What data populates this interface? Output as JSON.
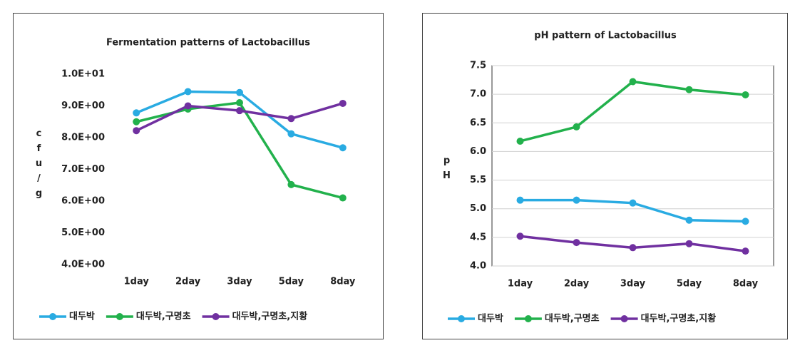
{
  "chart_data": [
    {
      "type": "line",
      "title": "Fermentation patterns of Lactobacillus",
      "y_label": "cfu/g",
      "categories": [
        "1day",
        "2day",
        "3day",
        "5day",
        "8day"
      ],
      "series": [
        {
          "name": "대두박",
          "color": "#29abe2",
          "values": [
            8.78,
            9.45,
            9.42,
            8.12,
            7.68
          ]
        },
        {
          "name": "대두박,구명초",
          "color": "#22b14c",
          "values": [
            8.5,
            8.9,
            9.1,
            6.52,
            6.1
          ]
        },
        {
          "name": "대두박,구명초,지황",
          "color": "#7030a0",
          "values": [
            8.22,
            9.0,
            8.85,
            8.6,
            9.08
          ]
        }
      ],
      "ylim": [
        4,
        10
      ],
      "yticks": [
        {
          "value": 4,
          "label": "4.0E+00"
        },
        {
          "value": 5,
          "label": "5.0E+00"
        },
        {
          "value": 6,
          "label": "6.0E+00"
        },
        {
          "value": 7,
          "label": "7.0E+00"
        },
        {
          "value": 8,
          "label": "8.0E+00"
        },
        {
          "value": 9,
          "label": "9.0E+00"
        },
        {
          "value": 10,
          "label": "1.0E+01"
        }
      ],
      "grid": false,
      "legend": "bottom"
    },
    {
      "type": "line",
      "title": "pH pattern of Lactobacillus",
      "y_label": "pH",
      "categories": [
        "1day",
        "2day",
        "3day",
        "5day",
        "8day"
      ],
      "series": [
        {
          "name": "대두박",
          "color": "#29abe2",
          "values": [
            5.15,
            5.15,
            5.1,
            4.8,
            4.78
          ]
        },
        {
          "name": "대두박,구명초",
          "color": "#22b14c",
          "values": [
            6.18,
            6.43,
            7.22,
            7.08,
            6.99
          ]
        },
        {
          "name": "대두박,구명초,지황",
          "color": "#7030a0",
          "values": [
            4.52,
            4.41,
            4.32,
            4.39,
            4.26
          ]
        }
      ],
      "ylim": [
        4,
        7.5
      ],
      "yticks": [
        {
          "value": 4,
          "label": "4.0"
        },
        4.5,
        {
          "value": 5,
          "label": "5.0"
        },
        5.5,
        {
          "value": 6,
          "label": "6.0"
        },
        6.5,
        {
          "value": 7,
          "label": "7.0"
        },
        7.5
      ],
      "grid": true,
      "legend": "bottom"
    }
  ]
}
